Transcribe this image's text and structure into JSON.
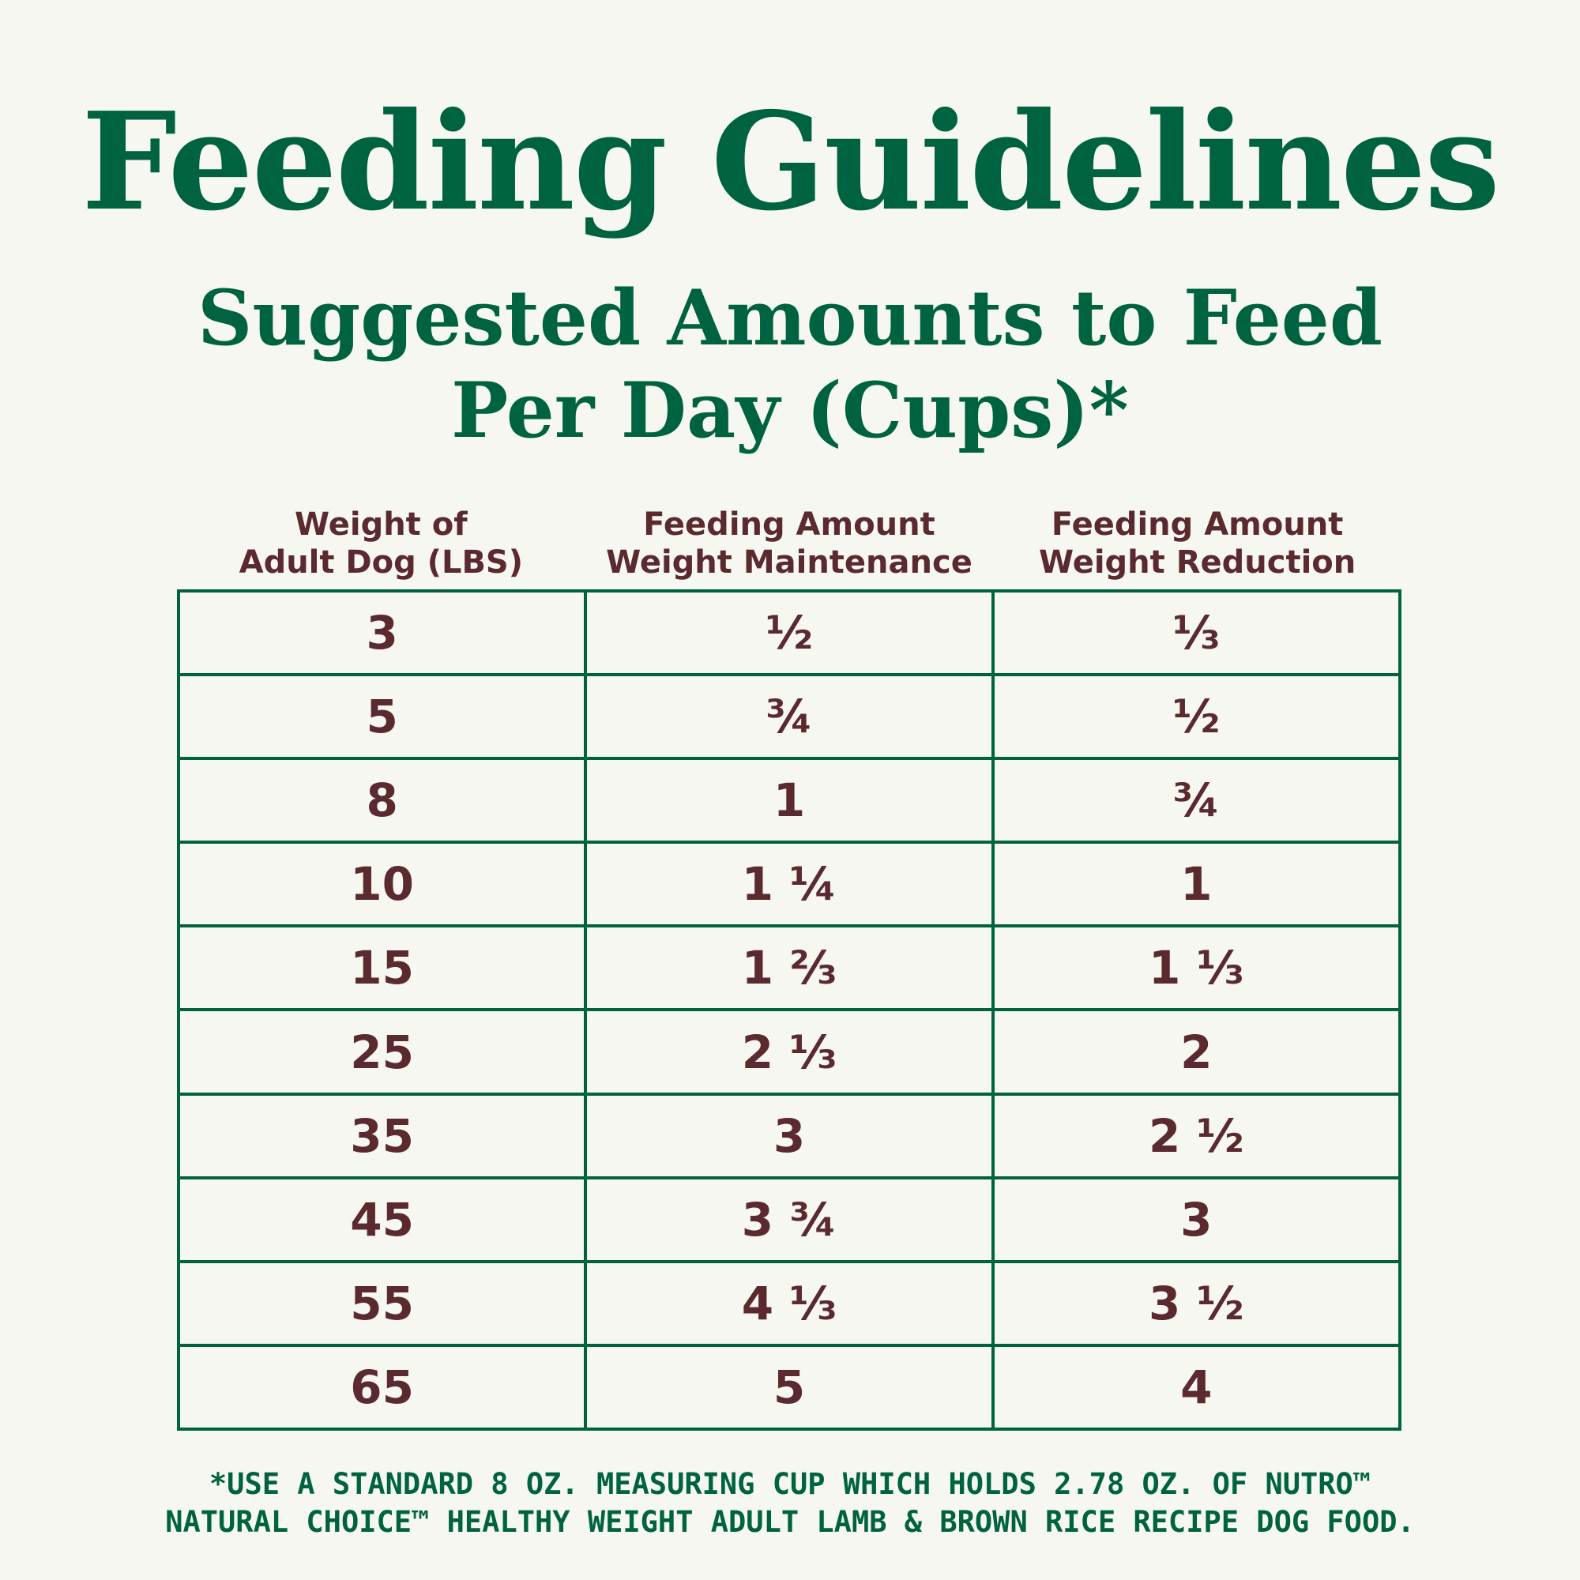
{
  "title": "Feeding Guidelines",
  "subtitle": {
    "line1": "Suggested Amounts to Feed",
    "line2": "Per Day (Cups)*"
  },
  "table": {
    "headers": [
      {
        "line1": "Weight of",
        "line2": "Adult Dog (LBS)"
      },
      {
        "line1": "Feeding Amount",
        "line2": "Weight Maintenance"
      },
      {
        "line1": "Feeding Amount",
        "line2": "Weight Reduction"
      }
    ],
    "rows": [
      [
        "3",
        "½",
        "⅓"
      ],
      [
        "5",
        "¾",
        "½"
      ],
      [
        "8",
        "1",
        "¾"
      ],
      [
        "10",
        "1 ¼",
        "1"
      ],
      [
        "15",
        "1 ⅔",
        "1 ⅓"
      ],
      [
        "25",
        "2 ⅓",
        "2"
      ],
      [
        "35",
        "3",
        "2 ½"
      ],
      [
        "45",
        "3 ¾",
        "3"
      ],
      [
        "55",
        "4 ⅓",
        "3 ½"
      ],
      [
        "65",
        "5",
        "4"
      ]
    ]
  },
  "footnote": {
    "line1": "*USE A STANDARD 8 OZ. MEASURING CUP WHICH HOLDS 2.78 OZ. OF NUTRO™",
    "line2": "NATURAL CHOICE™ HEALTHY WEIGHT ADULT LAMB & BROWN RICE RECIPE DOG FOOD."
  }
}
